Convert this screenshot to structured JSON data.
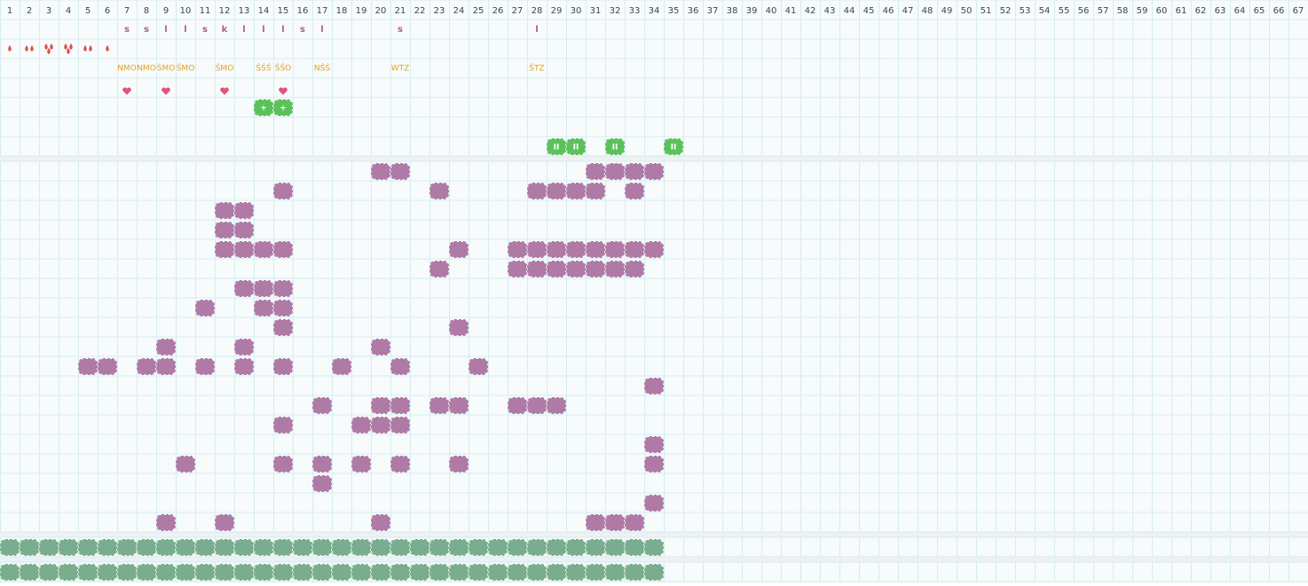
{
  "columns": [
    1,
    2,
    3,
    4,
    5,
    6,
    7,
    8,
    9,
    10,
    11,
    12,
    13,
    14,
    15,
    16,
    17,
    18,
    19,
    20,
    21,
    22,
    23,
    24,
    25,
    26,
    27,
    28,
    29,
    30,
    31,
    32,
    33,
    34,
    35,
    36,
    37,
    38,
    39,
    40,
    41,
    42,
    43,
    44,
    45,
    46,
    47,
    48,
    49,
    50,
    51,
    52,
    53,
    54,
    55,
    56,
    57,
    58,
    59,
    60,
    61,
    62,
    63,
    64,
    65,
    66,
    67
  ],
  "letters": [
    {
      "col": 7,
      "text": "s"
    },
    {
      "col": 8,
      "text": "s"
    },
    {
      "col": 9,
      "text": "l"
    },
    {
      "col": 10,
      "text": "l"
    },
    {
      "col": 11,
      "text": "s"
    },
    {
      "col": 12,
      "text": "k"
    },
    {
      "col": 13,
      "text": "l"
    },
    {
      "col": 14,
      "text": "l"
    },
    {
      "col": 15,
      "text": "l"
    },
    {
      "col": 16,
      "text": "s"
    },
    {
      "col": 17,
      "text": "l"
    },
    {
      "col": 21,
      "text": "s"
    },
    {
      "col": 28,
      "text": "l"
    }
  ],
  "drops": [
    {
      "col": 1,
      "count": 1
    },
    {
      "col": 2,
      "count": 2
    },
    {
      "col": 3,
      "count": 3
    },
    {
      "col": 4,
      "count": 3
    },
    {
      "col": 5,
      "count": 2
    },
    {
      "col": 6,
      "count": 1
    }
  ],
  "labels": [
    {
      "col": 7,
      "text": "NMO"
    },
    {
      "col": 8,
      "text": "NMO"
    },
    {
      "col": 9,
      "text": "ŚMO"
    },
    {
      "col": 10,
      "text": "ŚMO"
    },
    {
      "col": 12,
      "text": "ŚMO"
    },
    {
      "col": 14,
      "text": "ŚŚŚ"
    },
    {
      "col": 15,
      "text": "ŚŚO"
    },
    {
      "col": 17,
      "text": "NŚŚ"
    },
    {
      "col": 21,
      "text": "WTZ"
    },
    {
      "col": 28,
      "text": "ŚTZ"
    }
  ],
  "hearts": [
    7,
    9,
    12,
    15
  ],
  "plus": {
    "label": "+",
    "cols": [
      14,
      15
    ]
  },
  "pause": {
    "label": "II",
    "cols": [
      29,
      30,
      32,
      35
    ]
  },
  "grid": [
    [
      20,
      21,
      31,
      32,
      33,
      34
    ],
    [
      15,
      23,
      28,
      29,
      30,
      31,
      33
    ],
    [
      12,
      13
    ],
    [
      12,
      13
    ],
    [
      12,
      13,
      14,
      15,
      24,
      27,
      28,
      29,
      30,
      31,
      32,
      33,
      34
    ],
    [
      23,
      27,
      28,
      29,
      30,
      31,
      32,
      33
    ],
    [
      13,
      14,
      15
    ],
    [
      11,
      14,
      15
    ],
    [
      15,
      24
    ],
    [
      9,
      13,
      20
    ],
    [
      5,
      6,
      8,
      9,
      11,
      13,
      15,
      18,
      21,
      25
    ],
    [
      34
    ],
    [
      17,
      20,
      21,
      23,
      24,
      27,
      28,
      29
    ],
    [
      15,
      19,
      20,
      21
    ],
    [
      34
    ],
    [
      10,
      15,
      17,
      19,
      21,
      24,
      34
    ],
    [
      17
    ],
    [
      34
    ],
    [
      9,
      12,
      20,
      31,
      32,
      33
    ]
  ],
  "footer": [
    34,
    34
  ]
}
